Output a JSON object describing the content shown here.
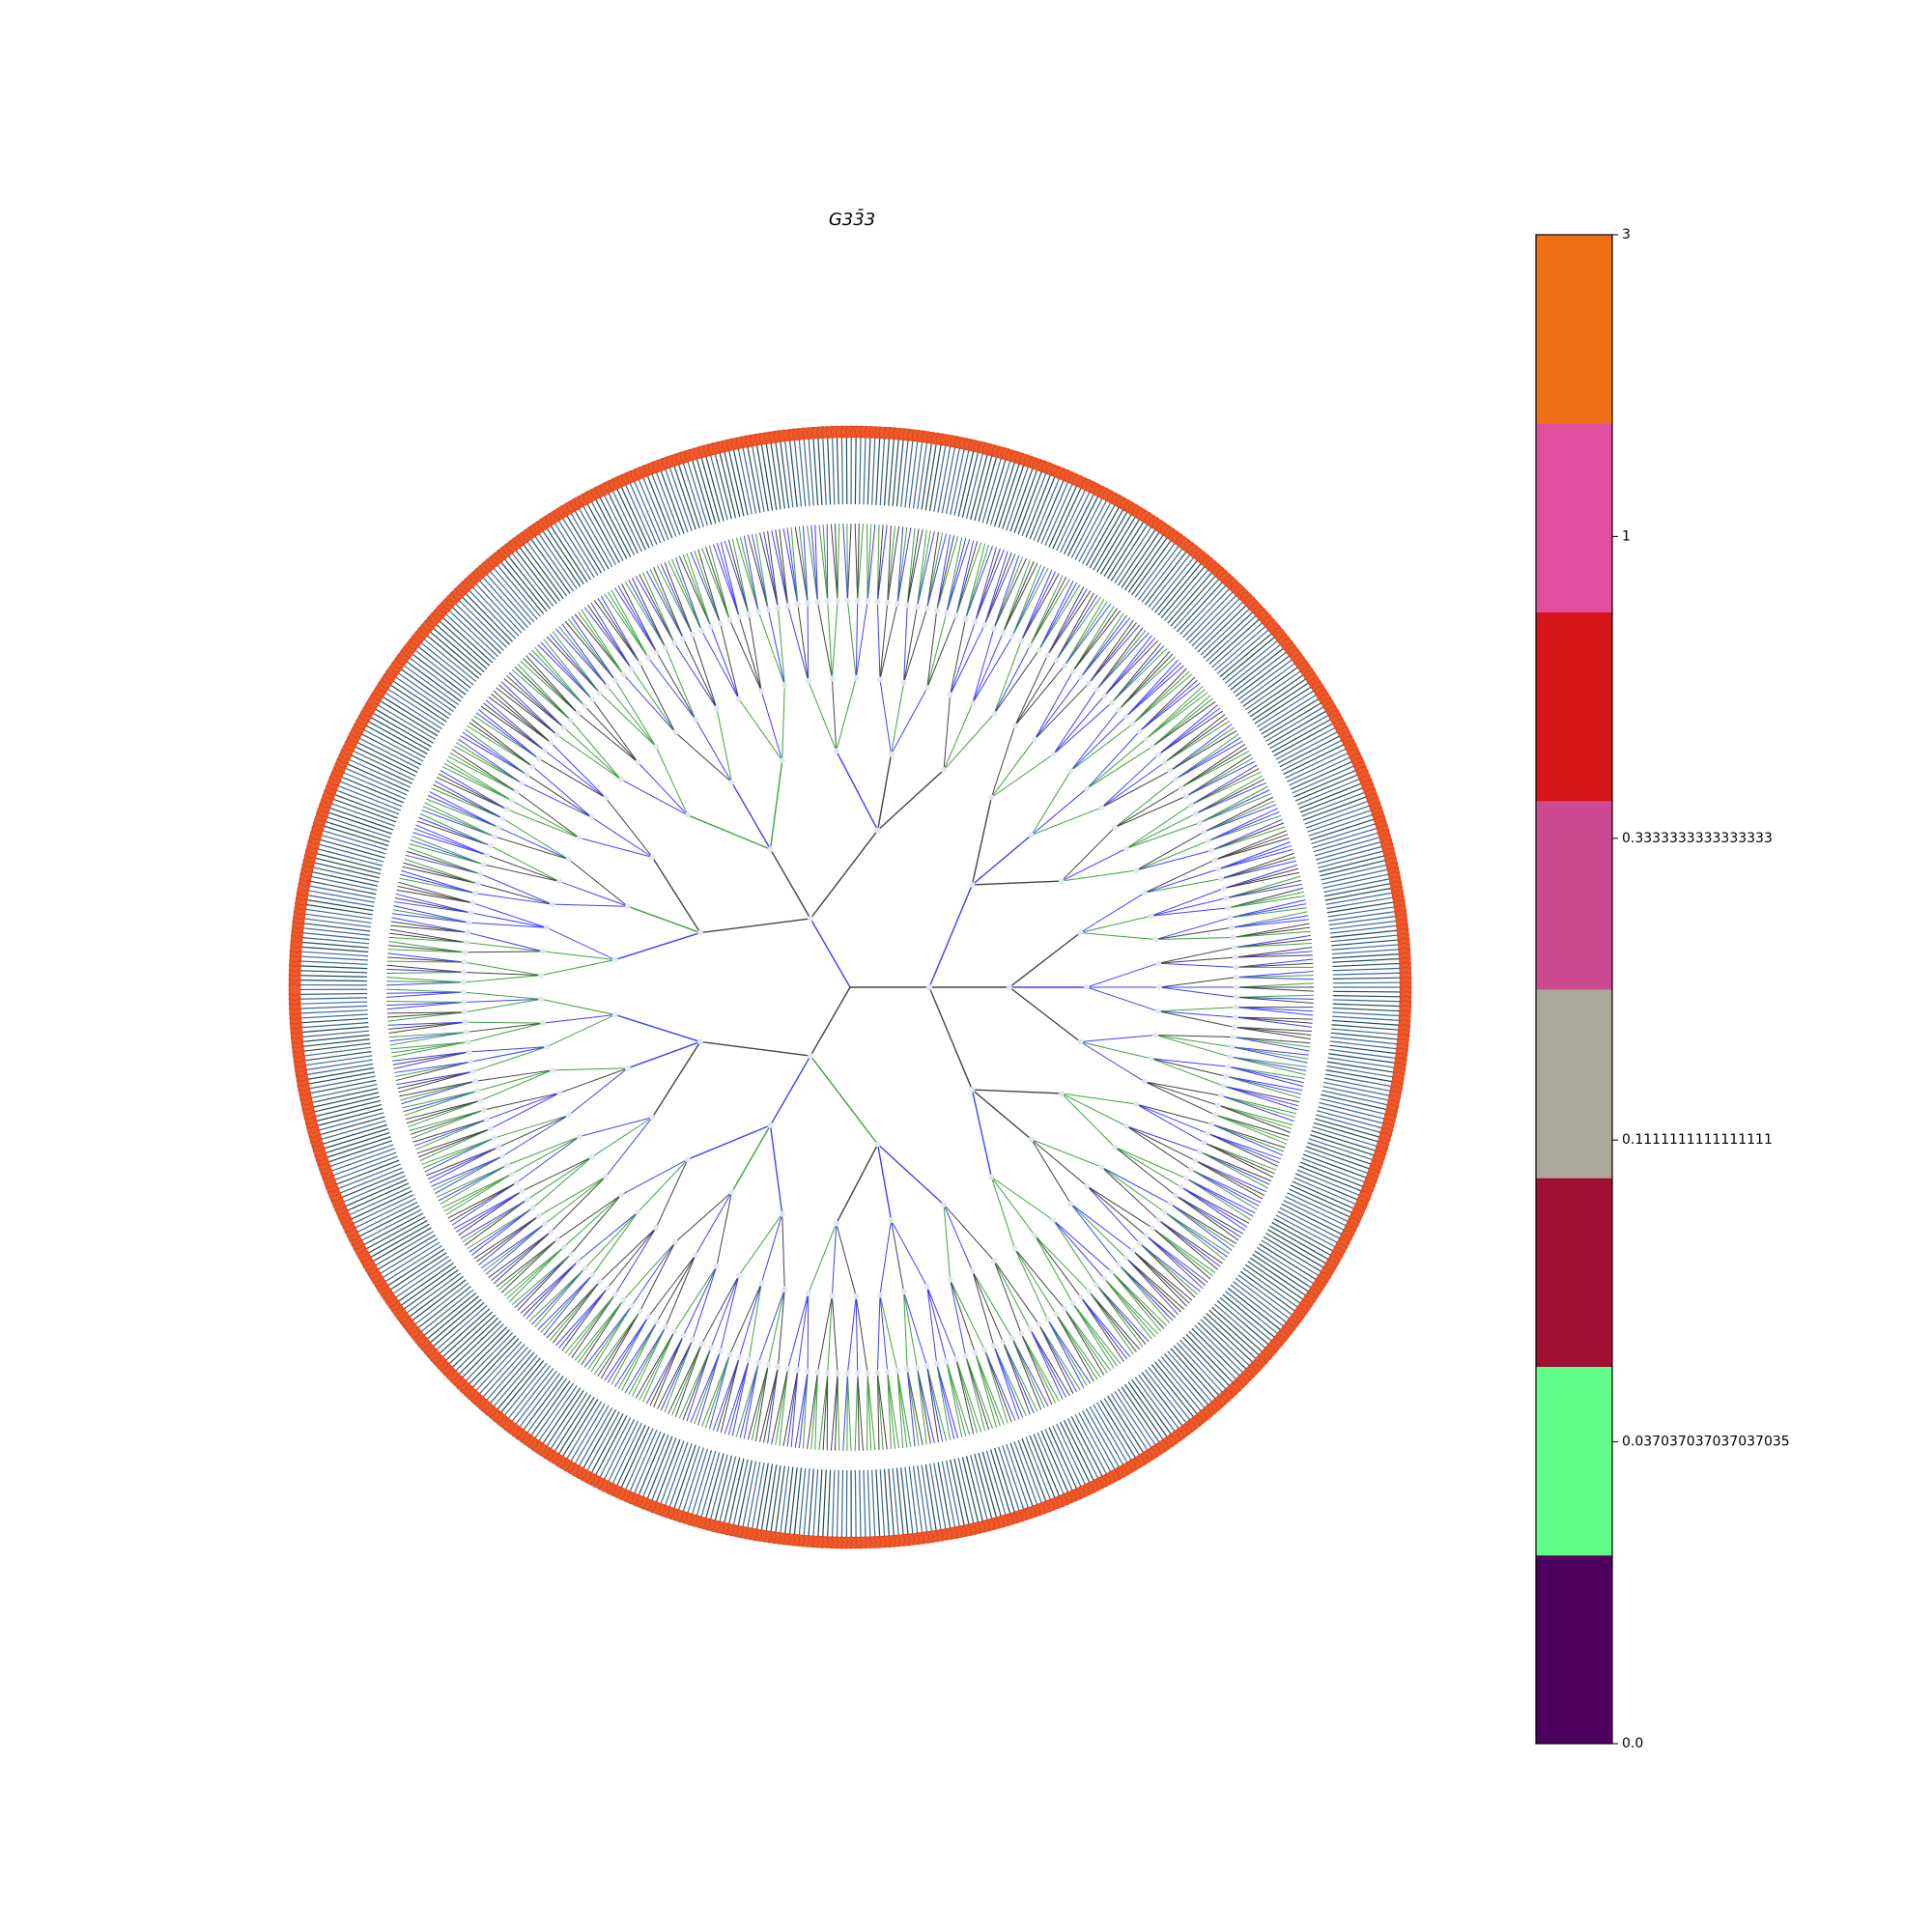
{
  "title": "G33̄3",
  "colorbar": {
    "colors": [
      "#4e0160",
      "#62fc88",
      "#9e0f31",
      "#aca899",
      "#cc4a8f",
      "#d41619",
      "#e04f9f",
      "#ee7117"
    ],
    "ticks": [
      {
        "value": 0,
        "label": "0.0"
      },
      0.037037037037037035,
      0.1111111111111111,
      0.3333333333333333,
      1,
      3
    ]
  }
}
